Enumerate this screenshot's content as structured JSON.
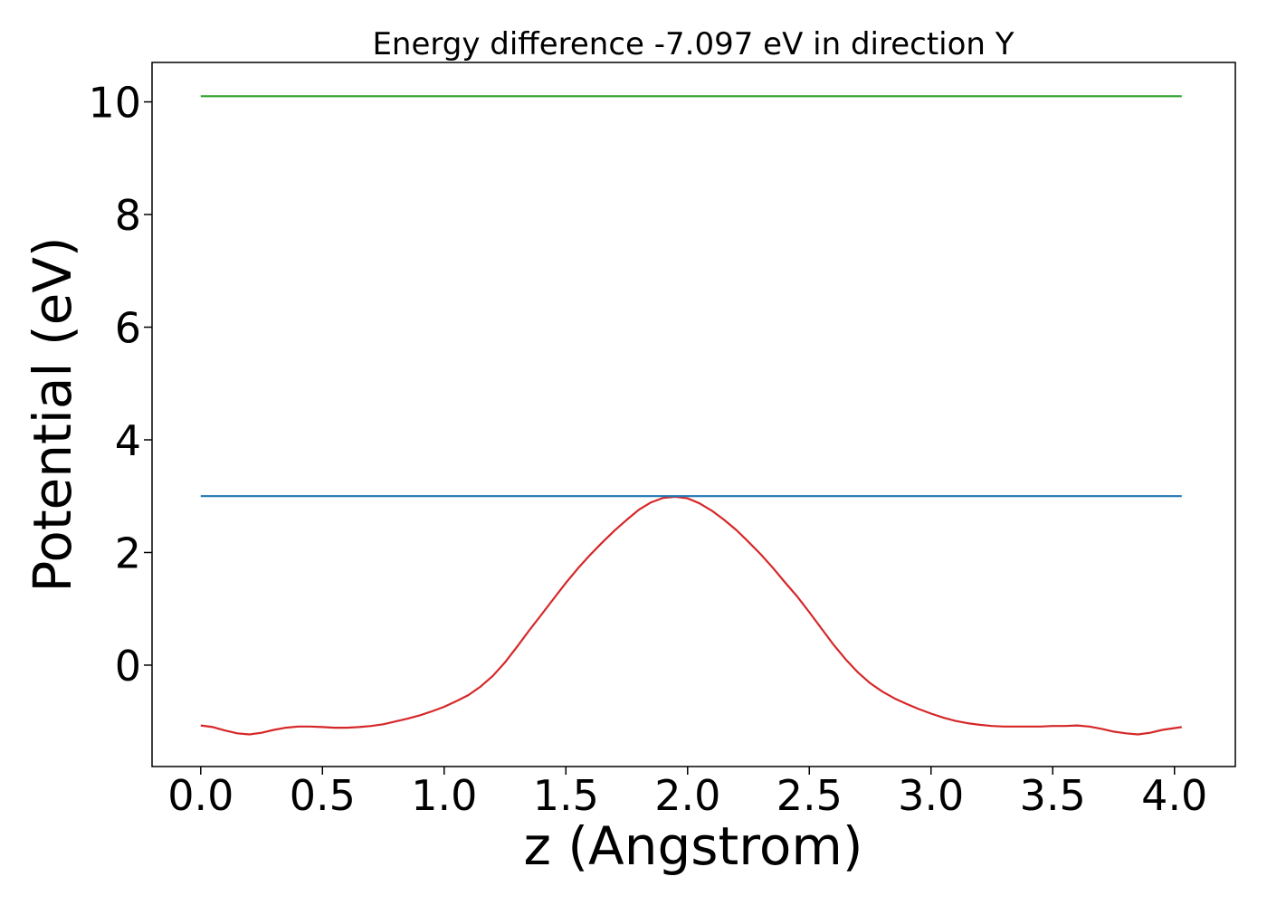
{
  "chart_data": {
    "type": "line",
    "title": "Energy difference -7.097 eV in direction Y",
    "xlabel": "z (Angstrom)",
    "ylabel": "Potential (eV)",
    "xlim": [
      -0.2,
      4.25
    ],
    "ylim": [
      -1.8,
      10.7
    ],
    "xticks": [
      0.0,
      0.5,
      1.0,
      1.5,
      2.0,
      2.5,
      3.0,
      3.5,
      4.0
    ],
    "xtick_labels": [
      "0.0",
      "0.5",
      "1.0",
      "1.5",
      "2.0",
      "2.5",
      "3.0",
      "3.5",
      "4.0"
    ],
    "yticks": [
      0,
      2,
      4,
      6,
      8,
      10
    ],
    "ytick_labels": [
      "0",
      "2",
      "4",
      "6",
      "8",
      "10"
    ],
    "grid": false,
    "legend": false,
    "series": [
      {
        "color": "#d62728",
        "x": [
          0.0,
          0.05,
          0.1,
          0.15,
          0.2,
          0.25,
          0.3,
          0.35,
          0.4,
          0.45,
          0.5,
          0.55,
          0.6,
          0.65,
          0.7,
          0.75,
          0.8,
          0.85,
          0.9,
          0.95,
          1.0,
          1.05,
          1.1,
          1.15,
          1.2,
          1.25,
          1.3,
          1.35,
          1.4,
          1.45,
          1.5,
          1.55,
          1.6,
          1.65,
          1.7,
          1.75,
          1.8,
          1.85,
          1.9,
          1.95,
          2.0,
          2.05,
          2.1,
          2.15,
          2.2,
          2.25,
          2.3,
          2.35,
          2.4,
          2.45,
          2.5,
          2.55,
          2.6,
          2.65,
          2.7,
          2.75,
          2.8,
          2.85,
          2.9,
          2.95,
          3.0,
          3.05,
          3.1,
          3.15,
          3.2,
          3.25,
          3.3,
          3.35,
          3.4,
          3.45,
          3.5,
          3.55,
          3.6,
          3.65,
          3.7,
          3.75,
          3.8,
          3.85,
          3.9,
          3.95,
          4.03
        ],
        "y": [
          -1.07,
          -1.1,
          -1.16,
          -1.21,
          -1.23,
          -1.2,
          -1.15,
          -1.11,
          -1.09,
          -1.09,
          -1.1,
          -1.11,
          -1.11,
          -1.1,
          -1.08,
          -1.05,
          -1.0,
          -0.95,
          -0.89,
          -0.82,
          -0.74,
          -0.64,
          -0.53,
          -0.38,
          -0.19,
          0.05,
          0.33,
          0.62,
          0.9,
          1.18,
          1.46,
          1.72,
          1.96,
          2.18,
          2.39,
          2.58,
          2.76,
          2.89,
          2.97,
          2.99,
          2.96,
          2.87,
          2.74,
          2.58,
          2.4,
          2.19,
          1.97,
          1.73,
          1.47,
          1.22,
          0.94,
          0.65,
          0.36,
          0.1,
          -0.13,
          -0.32,
          -0.47,
          -0.59,
          -0.69,
          -0.78,
          -0.86,
          -0.93,
          -0.99,
          -1.03,
          -1.06,
          -1.08,
          -1.09,
          -1.09,
          -1.09,
          -1.09,
          -1.08,
          -1.08,
          -1.07,
          -1.09,
          -1.13,
          -1.18,
          -1.21,
          -1.23,
          -1.2,
          -1.15,
          -1.1
        ]
      },
      {
        "color": "#1f77b4",
        "x": [
          0.0,
          4.03
        ],
        "y": [
          3.0,
          3.0
        ]
      },
      {
        "color": "#2ca02c",
        "x": [
          0.0,
          4.03
        ],
        "y": [
          10.1,
          10.1
        ]
      }
    ]
  }
}
